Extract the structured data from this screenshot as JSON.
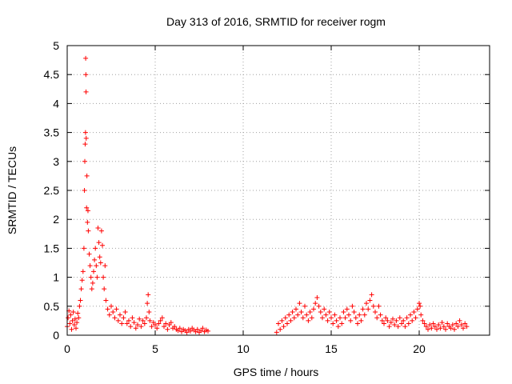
{
  "chart_data": {
    "type": "scatter",
    "title": "Day 313 of 2016, SRMTID for receiver rogm",
    "xlabel": "GPS time / hours",
    "ylabel": "SRMTID / TECUs",
    "xlim": [
      0,
      24
    ],
    "ylim": [
      0,
      5
    ],
    "x_ticks": [
      0,
      5,
      10,
      15,
      20
    ],
    "x_tick_labels": [
      "0",
      "5",
      "10",
      "15",
      "20"
    ],
    "y_ticks": [
      0,
      0.5,
      1,
      1.5,
      2,
      2.5,
      3,
      3.5,
      4,
      4.5,
      5
    ],
    "y_tick_labels": [
      "0",
      "0.5",
      "1",
      "1.5",
      "2",
      "2.5",
      "3",
      "3.5",
      "4",
      "4.5",
      "5"
    ],
    "grid": true,
    "marker": "+",
    "color": "#ff0000",
    "series": [
      {
        "name": "SRMTID",
        "points": [
          [
            0.0,
            0.15
          ],
          [
            0.05,
            0.3
          ],
          [
            0.1,
            0.42
          ],
          [
            0.15,
            0.2
          ],
          [
            0.2,
            0.35
          ],
          [
            0.25,
            0.1
          ],
          [
            0.3,
            0.25
          ],
          [
            0.35,
            0.4
          ],
          [
            0.4,
            0.18
          ],
          [
            0.45,
            0.28
          ],
          [
            0.5,
            0.12
          ],
          [
            0.55,
            0.22
          ],
          [
            0.6,
            0.38
          ],
          [
            0.65,
            0.3
          ],
          [
            0.7,
            0.5
          ],
          [
            0.75,
            0.6
          ],
          [
            0.8,
            0.8
          ],
          [
            0.85,
            0.95
          ],
          [
            0.9,
            1.1
          ],
          [
            0.95,
            1.5
          ],
          [
            0.98,
            2.5
          ],
          [
            1.0,
            3.0
          ],
          [
            1.02,
            3.3
          ],
          [
            1.04,
            3.5
          ],
          [
            1.05,
            4.78
          ],
          [
            1.06,
            4.5
          ],
          [
            1.07,
            4.2
          ],
          [
            1.08,
            3.4
          ],
          [
            1.1,
            2.2
          ],
          [
            1.12,
            2.75
          ],
          [
            1.15,
            1.95
          ],
          [
            1.18,
            2.15
          ],
          [
            1.2,
            1.8
          ],
          [
            1.25,
            1.4
          ],
          [
            1.3,
            1.2
          ],
          [
            1.35,
            1.0
          ],
          [
            1.4,
            0.8
          ],
          [
            1.45,
            0.9
          ],
          [
            1.5,
            1.1
          ],
          [
            1.55,
            1.3
          ],
          [
            1.6,
            1.5
          ],
          [
            1.65,
            1.2
          ],
          [
            1.7,
            1.0
          ],
          [
            1.75,
            1.85
          ],
          [
            1.8,
            1.6
          ],
          [
            1.85,
            1.35
          ],
          [
            1.9,
            1.25
          ],
          [
            1.95,
            1.8
          ],
          [
            2.0,
            1.55
          ],
          [
            2.05,
            1.0
          ],
          [
            2.1,
            0.8
          ],
          [
            2.15,
            1.2
          ],
          [
            2.2,
            0.6
          ],
          [
            2.3,
            0.45
          ],
          [
            2.4,
            0.35
          ],
          [
            2.5,
            0.5
          ],
          [
            2.6,
            0.4
          ],
          [
            2.7,
            0.3
          ],
          [
            2.8,
            0.45
          ],
          [
            2.9,
            0.25
          ],
          [
            3.0,
            0.35
          ],
          [
            3.1,
            0.2
          ],
          [
            3.2,
            0.3
          ],
          [
            3.3,
            0.4
          ],
          [
            3.4,
            0.2
          ],
          [
            3.5,
            0.25
          ],
          [
            3.6,
            0.15
          ],
          [
            3.7,
            0.3
          ],
          [
            3.8,
            0.22
          ],
          [
            3.9,
            0.12
          ],
          [
            4.0,
            0.18
          ],
          [
            4.1,
            0.28
          ],
          [
            4.2,
            0.15
          ],
          [
            4.3,
            0.25
          ],
          [
            4.4,
            0.2
          ],
          [
            4.5,
            0.3
          ],
          [
            4.55,
            0.55
          ],
          [
            4.6,
            0.7
          ],
          [
            4.65,
            0.4
          ],
          [
            4.7,
            0.25
          ],
          [
            4.8,
            0.15
          ],
          [
            4.9,
            0.22
          ],
          [
            5.0,
            0.18
          ],
          [
            5.1,
            0.12
          ],
          [
            5.2,
            0.2
          ],
          [
            5.3,
            0.25
          ],
          [
            5.4,
            0.3
          ],
          [
            5.5,
            0.15
          ],
          [
            5.6,
            0.2
          ],
          [
            5.7,
            0.1
          ],
          [
            5.8,
            0.18
          ],
          [
            5.9,
            0.22
          ],
          [
            6.0,
            0.12
          ],
          [
            6.1,
            0.15
          ],
          [
            6.2,
            0.1
          ],
          [
            6.3,
            0.08
          ],
          [
            6.4,
            0.12
          ],
          [
            6.5,
            0.06
          ],
          [
            6.6,
            0.1
          ],
          [
            6.7,
            0.08
          ],
          [
            6.8,
            0.05
          ],
          [
            6.9,
            0.1
          ],
          [
            7.0,
            0.07
          ],
          [
            7.1,
            0.12
          ],
          [
            7.2,
            0.09
          ],
          [
            7.3,
            0.06
          ],
          [
            7.4,
            0.1
          ],
          [
            7.5,
            0.05
          ],
          [
            7.6,
            0.08
          ],
          [
            7.7,
            0.12
          ],
          [
            7.8,
            0.06
          ],
          [
            7.9,
            0.09
          ],
          [
            8.0,
            0.07
          ],
          [
            11.9,
            0.05
          ],
          [
            12.0,
            0.2
          ],
          [
            12.1,
            0.1
          ],
          [
            12.2,
            0.25
          ],
          [
            12.3,
            0.15
          ],
          [
            12.4,
            0.3
          ],
          [
            12.5,
            0.2
          ],
          [
            12.6,
            0.35
          ],
          [
            12.7,
            0.25
          ],
          [
            12.8,
            0.4
          ],
          [
            12.9,
            0.3
          ],
          [
            13.0,
            0.45
          ],
          [
            13.1,
            0.35
          ],
          [
            13.2,
            0.55
          ],
          [
            13.3,
            0.4
          ],
          [
            13.4,
            0.3
          ],
          [
            13.5,
            0.5
          ],
          [
            13.6,
            0.35
          ],
          [
            13.7,
            0.25
          ],
          [
            13.8,
            0.4
          ],
          [
            13.9,
            0.3
          ],
          [
            14.0,
            0.45
          ],
          [
            14.1,
            0.55
          ],
          [
            14.2,
            0.65
          ],
          [
            14.3,
            0.5
          ],
          [
            14.4,
            0.4
          ],
          [
            14.5,
            0.3
          ],
          [
            14.6,
            0.45
          ],
          [
            14.7,
            0.35
          ],
          [
            14.8,
            0.25
          ],
          [
            14.9,
            0.4
          ],
          [
            15.0,
            0.3
          ],
          [
            15.1,
            0.2
          ],
          [
            15.2,
            0.35
          ],
          [
            15.3,
            0.25
          ],
          [
            15.4,
            0.15
          ],
          [
            15.5,
            0.3
          ],
          [
            15.6,
            0.2
          ],
          [
            15.7,
            0.4
          ],
          [
            15.8,
            0.3
          ],
          [
            15.9,
            0.45
          ],
          [
            16.0,
            0.35
          ],
          [
            16.1,
            0.25
          ],
          [
            16.2,
            0.5
          ],
          [
            16.3,
            0.4
          ],
          [
            16.4,
            0.3
          ],
          [
            16.5,
            0.2
          ],
          [
            16.6,
            0.35
          ],
          [
            16.7,
            0.25
          ],
          [
            16.8,
            0.45
          ],
          [
            16.9,
            0.35
          ],
          [
            17.0,
            0.55
          ],
          [
            17.1,
            0.45
          ],
          [
            17.2,
            0.6
          ],
          [
            17.3,
            0.7
          ],
          [
            17.4,
            0.5
          ],
          [
            17.5,
            0.4
          ],
          [
            17.6,
            0.3
          ],
          [
            17.7,
            0.5
          ],
          [
            17.8,
            0.35
          ],
          [
            17.9,
            0.25
          ],
          [
            18.0,
            0.2
          ],
          [
            18.1,
            0.3
          ],
          [
            18.2,
            0.25
          ],
          [
            18.3,
            0.15
          ],
          [
            18.4,
            0.22
          ],
          [
            18.5,
            0.28
          ],
          [
            18.6,
            0.18
          ],
          [
            18.7,
            0.25
          ],
          [
            18.8,
            0.15
          ],
          [
            18.9,
            0.3
          ],
          [
            19.0,
            0.2
          ],
          [
            19.1,
            0.25
          ],
          [
            19.2,
            0.15
          ],
          [
            19.3,
            0.3
          ],
          [
            19.4,
            0.2
          ],
          [
            19.5,
            0.35
          ],
          [
            19.6,
            0.25
          ],
          [
            19.7,
            0.4
          ],
          [
            19.8,
            0.3
          ],
          [
            19.9,
            0.45
          ],
          [
            20.0,
            0.55
          ],
          [
            20.05,
            0.5
          ],
          [
            20.1,
            0.35
          ],
          [
            20.2,
            0.25
          ],
          [
            20.3,
            0.2
          ],
          [
            20.4,
            0.15
          ],
          [
            20.5,
            0.1
          ],
          [
            20.6,
            0.18
          ],
          [
            20.7,
            0.12
          ],
          [
            20.8,
            0.2
          ],
          [
            20.9,
            0.15
          ],
          [
            21.0,
            0.1
          ],
          [
            21.1,
            0.18
          ],
          [
            21.2,
            0.12
          ],
          [
            21.3,
            0.22
          ],
          [
            21.4,
            0.15
          ],
          [
            21.5,
            0.1
          ],
          [
            21.6,
            0.2
          ],
          [
            21.7,
            0.15
          ],
          [
            21.8,
            0.12
          ],
          [
            21.9,
            0.18
          ],
          [
            22.0,
            0.1
          ],
          [
            22.1,
            0.2
          ],
          [
            22.2,
            0.15
          ],
          [
            22.3,
            0.25
          ],
          [
            22.4,
            0.18
          ],
          [
            22.5,
            0.12
          ],
          [
            22.6,
            0.2
          ],
          [
            22.7,
            0.15
          ]
        ]
      }
    ]
  }
}
